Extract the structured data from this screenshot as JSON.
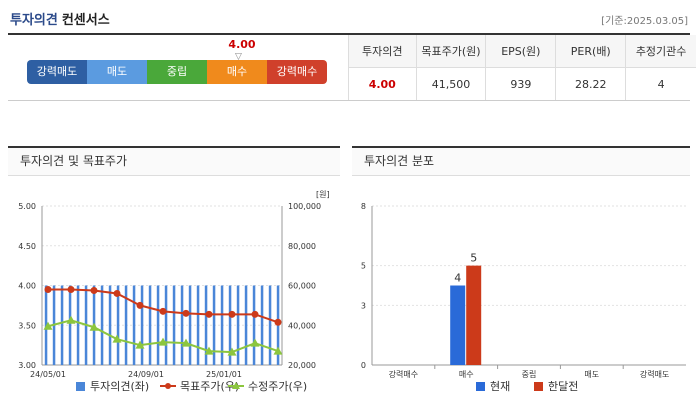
{
  "header": {
    "title": "투자의견",
    "subtitle": "컨센서스",
    "date": "[기준:2025.03.05]"
  },
  "scale": {
    "value": "4.00",
    "segments": [
      {
        "label": "강력매도",
        "color": "#2e5fa3"
      },
      {
        "label": "매도",
        "color": "#5b9be0"
      },
      {
        "label": "중립",
        "color": "#4aa83a"
      },
      {
        "label": "매수",
        "color": "#f08a1c"
      },
      {
        "label": "강력매수",
        "color": "#d0402b"
      }
    ]
  },
  "summary": {
    "headers": [
      "투자의견",
      "목표주가(원)",
      "EPS(원)",
      "PER(배)",
      "추정기관수"
    ],
    "values": [
      "4.00",
      "41,500",
      "939",
      "28.22",
      "4"
    ]
  },
  "panels": {
    "left_title": "투자의견 및 목표주가",
    "right_title": "투자의견 분포"
  },
  "chart_data": [
    {
      "type": "bar+line",
      "title": "투자의견 및 목표주가",
      "y_left_ticks": [
        "5.00",
        "4.50",
        "4.00",
        "3.50",
        "3.00"
      ],
      "y_right_ticks": [
        "100,000",
        "80,000",
        "60,000",
        "40,000",
        "20,000"
      ],
      "y_right_unit": "[원]",
      "x_ticks": [
        "24/05/01",
        "24/09/01",
        "25/01/01"
      ],
      "ylim_left": [
        3,
        5
      ],
      "ylim_right": [
        20000,
        100000
      ],
      "opinion": [
        4,
        4,
        4,
        4,
        4,
        4,
        4,
        4,
        4,
        4,
        4,
        4,
        4,
        4,
        4,
        4,
        4,
        4,
        4,
        4,
        4,
        4,
        4,
        4,
        4,
        4,
        4,
        4,
        4,
        4
      ],
      "target_price": [
        58000,
        58000,
        57500,
        56000,
        50000,
        47000,
        46000,
        45500,
        45500,
        45500,
        41500
      ],
      "adj_price": [
        39500,
        42500,
        39000,
        33000,
        30000,
        31500,
        31000,
        27000,
        26500,
        31000,
        27000
      ],
      "legend": [
        "투자의견(좌)",
        "목표주가(우)",
        "수정주가(우)"
      ],
      "colors": {
        "opinion": "#4a86d8",
        "target": "#cc3a1a",
        "adj": "#8cc63e"
      }
    },
    {
      "type": "bar",
      "title": "투자의견 분포",
      "categories": [
        "강력매수",
        "매수",
        "중립",
        "매도",
        "강력매도"
      ],
      "ylim": [
        0,
        8
      ],
      "y_ticks": [
        "8",
        "5",
        "3",
        "0"
      ],
      "series": [
        {
          "name": "현재",
          "values": [
            0,
            4,
            0,
            0,
            0
          ],
          "color": "#2a6ad8"
        },
        {
          "name": "한달전",
          "values": [
            0,
            5,
            0,
            0,
            0
          ],
          "color": "#cc3a1a"
        }
      ],
      "data_labels": [
        "4",
        "5"
      ]
    }
  ]
}
